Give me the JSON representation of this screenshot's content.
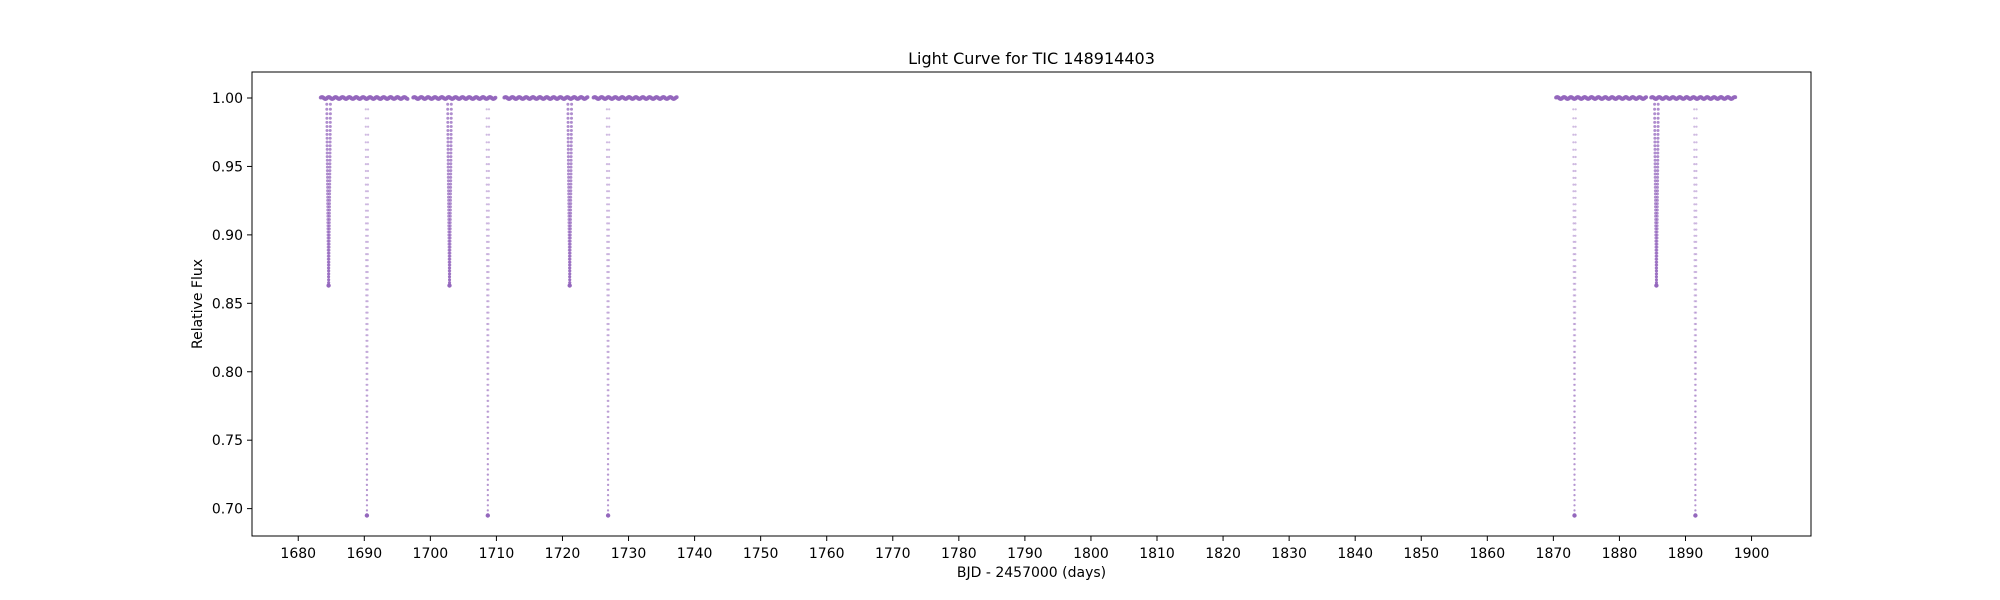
{
  "chart_data": {
    "type": "scatter",
    "title": "Light Curve for TIC 148914403",
    "xlabel": "BJD - 2457000 (days)",
    "ylabel": "Relative Flux",
    "xlim": [
      1673,
      1909
    ],
    "ylim": [
      0.68,
      1.019
    ],
    "xticks": [
      1680,
      1690,
      1700,
      1710,
      1720,
      1730,
      1740,
      1750,
      1760,
      1770,
      1780,
      1790,
      1800,
      1810,
      1820,
      1830,
      1840,
      1850,
      1860,
      1870,
      1880,
      1890,
      1900
    ],
    "xtick_labels": [
      "1680",
      "1690",
      "1700",
      "1710",
      "1720",
      "1730",
      "1740",
      "1750",
      "1760",
      "1770",
      "1780",
      "1790",
      "1800",
      "1810",
      "1820",
      "1830",
      "1840",
      "1850",
      "1860",
      "1870",
      "1880",
      "1890",
      "1900"
    ],
    "yticks": [
      0.7,
      0.75,
      0.8,
      0.85,
      0.9,
      0.95,
      1.0
    ],
    "ytick_labels": [
      "0.70",
      "0.75",
      "0.80",
      "0.85",
      "0.90",
      "0.95",
      "1.00"
    ],
    "grid": false,
    "legend": "none",
    "color": "#9467bd",
    "series": [
      {
        "baseline_flux": 1.0,
        "observed_segments": [
          [
            1683.4,
            1696.6
          ],
          [
            1697.4,
            1709.9
          ],
          [
            1711.2,
            1723.8
          ],
          [
            1724.7,
            1737.3
          ],
          [
            1870.4,
            1884.1
          ],
          [
            1884.8,
            1897.6
          ]
        ],
        "eclipses": [
          {
            "kind": "secondary",
            "time": 1684.6,
            "depth_flux": 0.863
          },
          {
            "kind": "primary",
            "time": 1690.4,
            "depth_flux": 0.695
          },
          {
            "kind": "secondary",
            "time": 1702.9,
            "depth_flux": 0.863
          },
          {
            "kind": "primary",
            "time": 1708.7,
            "depth_flux": 0.695
          },
          {
            "kind": "secondary",
            "time": 1721.1,
            "depth_flux": 0.863
          },
          {
            "kind": "primary",
            "time": 1726.9,
            "depth_flux": 0.695
          },
          {
            "kind": "primary",
            "time": 1873.2,
            "depth_flux": 0.695
          },
          {
            "kind": "secondary",
            "time": 1885.6,
            "depth_flux": 0.863
          },
          {
            "kind": "primary",
            "time": 1891.5,
            "depth_flux": 0.695
          }
        ]
      }
    ]
  }
}
